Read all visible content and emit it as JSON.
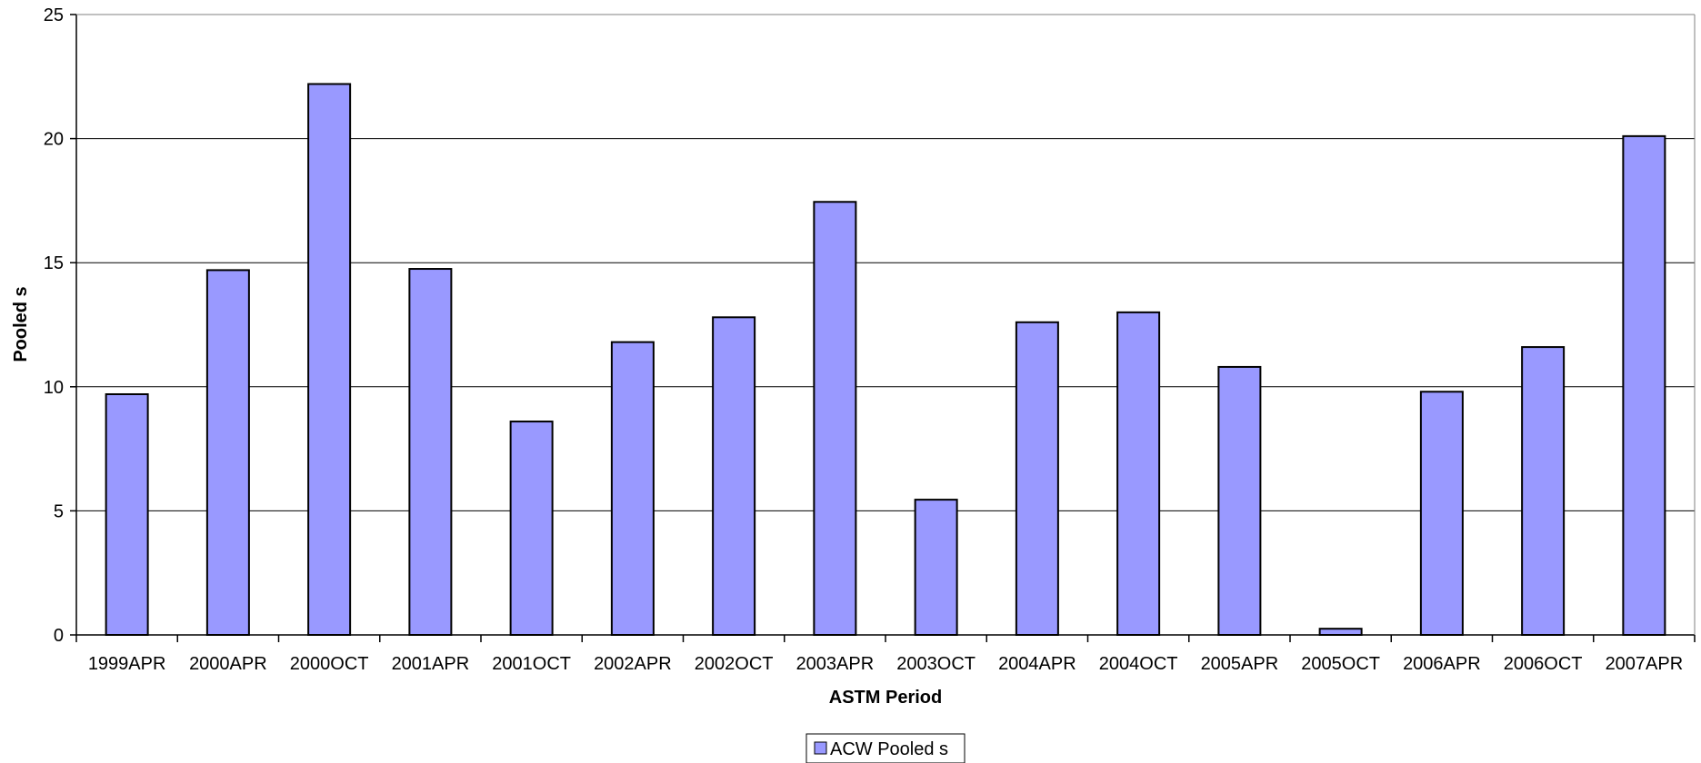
{
  "chart_data": {
    "type": "bar",
    "xlabel": "ASTM Period",
    "ylabel": "Pooled s",
    "ylim": [
      0,
      25
    ],
    "yticks": [
      0,
      5,
      10,
      15,
      20,
      25
    ],
    "grid": true,
    "legend_position": "bottom-center",
    "categories": [
      "1999APR",
      "2000APR",
      "2000OCT",
      "2001APR",
      "2001OCT",
      "2002APR",
      "2002OCT",
      "2003APR",
      "2003OCT",
      "2004APR",
      "2004OCT",
      "2005APR",
      "2005OCT",
      "2006APR",
      "2006OCT",
      "2007APR"
    ],
    "series": [
      {
        "name": "ACW Pooled s",
        "color": "#9999ff",
        "values": [
          9.7,
          14.7,
          22.2,
          14.75,
          8.6,
          11.8,
          12.8,
          17.45,
          5.45,
          12.6,
          13.0,
          10.8,
          0.25,
          9.8,
          11.6,
          20.1
        ]
      }
    ]
  }
}
